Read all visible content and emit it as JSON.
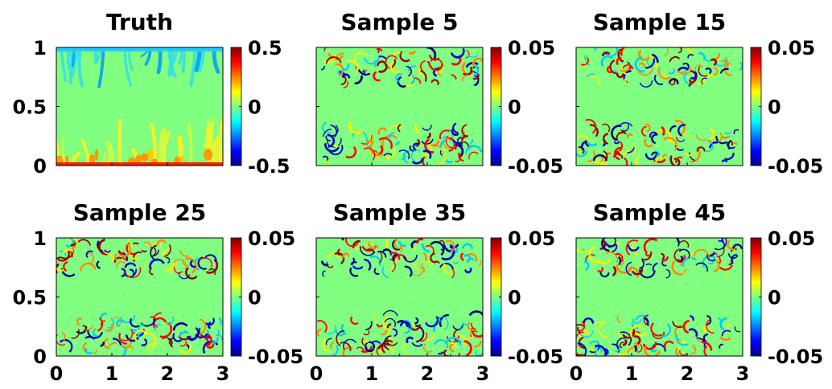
{
  "chart_data": [
    {
      "type": "heatmap",
      "title": "Truth",
      "x_ticks": [
        "0",
        "1",
        "2",
        "3"
      ],
      "y_ticks": [
        "0",
        "0.5",
        "1"
      ],
      "colorbar_ticks": [
        "-0.5",
        "0",
        "0.5"
      ],
      "xlim": [
        0,
        3
      ],
      "ylim": [
        0,
        1
      ],
      "clim": [
        -0.5,
        0.5
      ],
      "colormap": "jet"
    },
    {
      "type": "heatmap",
      "title": "Sample 5",
      "x_ticks": [
        "0",
        "1",
        "2",
        "3"
      ],
      "y_ticks": [
        "0",
        "0.5",
        "1"
      ],
      "colorbar_ticks": [
        "-0.05",
        "0",
        "0.05"
      ],
      "xlim": [
        0,
        3
      ],
      "ylim": [
        0,
        1
      ],
      "clim": [
        -0.05,
        0.05
      ],
      "colormap": "jet"
    },
    {
      "type": "heatmap",
      "title": "Sample 15",
      "x_ticks": [
        "0",
        "1",
        "2",
        "3"
      ],
      "y_ticks": [
        "0",
        "0.5",
        "1"
      ],
      "colorbar_ticks": [
        "-0.05",
        "0",
        "0.05"
      ],
      "xlim": [
        0,
        3
      ],
      "ylim": [
        0,
        1
      ],
      "clim": [
        -0.05,
        0.05
      ],
      "colormap": "jet"
    },
    {
      "type": "heatmap",
      "title": "Sample 25",
      "x_ticks": [
        "0",
        "1",
        "2",
        "3"
      ],
      "y_ticks": [
        "0",
        "0.5",
        "1"
      ],
      "colorbar_ticks": [
        "-0.05",
        "0",
        "0.05"
      ],
      "xlim": [
        0,
        3
      ],
      "ylim": [
        0,
        1
      ],
      "clim": [
        -0.05,
        0.05
      ],
      "colormap": "jet"
    },
    {
      "type": "heatmap",
      "title": "Sample 35",
      "x_ticks": [
        "0",
        "1",
        "2",
        "3"
      ],
      "y_ticks": [
        "0",
        "0.5",
        "1"
      ],
      "colorbar_ticks": [
        "-0.05",
        "0",
        "0.05"
      ],
      "xlim": [
        0,
        3
      ],
      "ylim": [
        0,
        1
      ],
      "clim": [
        -0.05,
        0.05
      ],
      "colormap": "jet"
    },
    {
      "type": "heatmap",
      "title": "Sample 45",
      "x_ticks": [
        "0",
        "1",
        "2",
        "3"
      ],
      "y_ticks": [
        "0",
        "0.5",
        "1"
      ],
      "colorbar_ticks": [
        "-0.05",
        "0",
        "0.05"
      ],
      "xlim": [
        0,
        3
      ],
      "ylim": [
        0,
        1
      ],
      "clim": [
        -0.05,
        0.05
      ],
      "colormap": "jet"
    }
  ],
  "colors": {
    "background": "#ffffff",
    "field_neutral": "#80ff80"
  }
}
